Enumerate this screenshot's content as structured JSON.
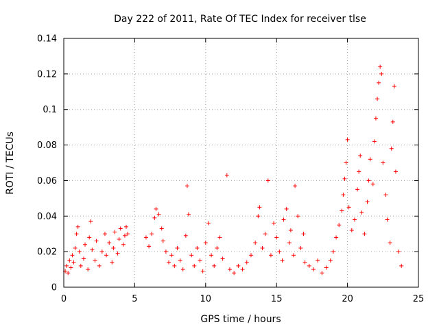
{
  "chart_data": {
    "type": "scatter",
    "title": "Day 222 of 2011, Rate Of TEC Index for receiver tlse",
    "xlabel": "GPS time / hours",
    "ylabel": "ROTI / TECUs",
    "xlim": [
      0,
      25
    ],
    "ylim": [
      0,
      0.14
    ],
    "xticks": [
      0,
      5,
      10,
      15,
      20,
      25
    ],
    "yticks": [
      0,
      0.02,
      0.04,
      0.06,
      0.08,
      0.1,
      0.12,
      0.14
    ],
    "xtick_labels": [
      "0",
      "5",
      "10",
      "15",
      "20",
      "25"
    ],
    "ytick_labels": [
      "0",
      "0.02",
      "0.04",
      "0.06",
      "0.08",
      "0.1",
      "0.12",
      "0.14"
    ],
    "grid": true,
    "marker": "+",
    "color": "#ff0000",
    "series": [
      {
        "points": [
          [
            0.1,
            0.009
          ],
          [
            0.2,
            0.012
          ],
          [
            0.3,
            0.008
          ],
          [
            0.4,
            0.015
          ],
          [
            0.5,
            0.011
          ],
          [
            0.6,
            0.018
          ],
          [
            0.7,
            0.014
          ],
          [
            0.8,
            0.022
          ],
          [
            0.9,
            0.03
          ],
          [
            1.0,
            0.034
          ],
          [
            1.1,
            0.02
          ],
          [
            1.2,
            0.012
          ],
          [
            1.4,
            0.016
          ],
          [
            1.5,
            0.024
          ],
          [
            1.7,
            0.01
          ],
          [
            1.8,
            0.028
          ],
          [
            1.9,
            0.037
          ],
          [
            2.0,
            0.021
          ],
          [
            2.2,
            0.015
          ],
          [
            2.3,
            0.026
          ],
          [
            2.5,
            0.012
          ],
          [
            2.7,
            0.02
          ],
          [
            2.9,
            0.03
          ],
          [
            3.0,
            0.018
          ],
          [
            3.2,
            0.025
          ],
          [
            3.4,
            0.014
          ],
          [
            3.5,
            0.022
          ],
          [
            3.6,
            0.031
          ],
          [
            3.8,
            0.019
          ],
          [
            3.9,
            0.027
          ],
          [
            4.0,
            0.033
          ],
          [
            4.2,
            0.024
          ],
          [
            4.3,
            0.029
          ],
          [
            4.4,
            0.034
          ],
          [
            4.5,
            0.03
          ],
          [
            5.8,
            0.028
          ],
          [
            6.0,
            0.023
          ],
          [
            6.2,
            0.03
          ],
          [
            6.4,
            0.039
          ],
          [
            6.5,
            0.044
          ],
          [
            6.7,
            0.041
          ],
          [
            6.9,
            0.033
          ],
          [
            7.0,
            0.026
          ],
          [
            7.2,
            0.02
          ],
          [
            7.4,
            0.014
          ],
          [
            7.6,
            0.018
          ],
          [
            7.8,
            0.012
          ],
          [
            8.0,
            0.022
          ],
          [
            8.2,
            0.015
          ],
          [
            8.4,
            0.01
          ],
          [
            8.6,
            0.029
          ],
          [
            8.7,
            0.057
          ],
          [
            8.8,
            0.041
          ],
          [
            9.0,
            0.018
          ],
          [
            9.2,
            0.012
          ],
          [
            9.4,
            0.022
          ],
          [
            9.6,
            0.015
          ],
          [
            9.8,
            0.009
          ],
          [
            10.0,
            0.025
          ],
          [
            10.2,
            0.036
          ],
          [
            10.4,
            0.018
          ],
          [
            10.6,
            0.012
          ],
          [
            10.8,
            0.022
          ],
          [
            11.0,
            0.028
          ],
          [
            11.2,
            0.016
          ],
          [
            11.5,
            0.063
          ],
          [
            11.7,
            0.01
          ],
          [
            12.0,
            0.008
          ],
          [
            12.3,
            0.012
          ],
          [
            12.6,
            0.01
          ],
          [
            12.9,
            0.014
          ],
          [
            13.2,
            0.018
          ],
          [
            13.5,
            0.025
          ],
          [
            13.7,
            0.04
          ],
          [
            13.8,
            0.045
          ],
          [
            14.0,
            0.022
          ],
          [
            14.2,
            0.03
          ],
          [
            14.4,
            0.06
          ],
          [
            14.6,
            0.018
          ],
          [
            14.8,
            0.036
          ],
          [
            15.0,
            0.028
          ],
          [
            15.2,
            0.02
          ],
          [
            15.4,
            0.015
          ],
          [
            15.5,
            0.038
          ],
          [
            15.7,
            0.044
          ],
          [
            15.9,
            0.025
          ],
          [
            16.0,
            0.032
          ],
          [
            16.2,
            0.018
          ],
          [
            16.3,
            0.057
          ],
          [
            16.5,
            0.04
          ],
          [
            16.7,
            0.022
          ],
          [
            16.9,
            0.03
          ],
          [
            17.0,
            0.014
          ],
          [
            17.3,
            0.012
          ],
          [
            17.6,
            0.01
          ],
          [
            17.9,
            0.015
          ],
          [
            18.2,
            0.008
          ],
          [
            18.5,
            0.011
          ],
          [
            18.8,
            0.015
          ],
          [
            19.0,
            0.02
          ],
          [
            19.2,
            0.028
          ],
          [
            19.4,
            0.035
          ],
          [
            19.6,
            0.043
          ],
          [
            19.7,
            0.052
          ],
          [
            19.8,
            0.061
          ],
          [
            19.9,
            0.07
          ],
          [
            20.0,
            0.083
          ],
          [
            20.1,
            0.045
          ],
          [
            20.3,
            0.032
          ],
          [
            20.5,
            0.038
          ],
          [
            20.7,
            0.055
          ],
          [
            20.8,
            0.065
          ],
          [
            20.9,
            0.074
          ],
          [
            21.0,
            0.042
          ],
          [
            21.2,
            0.03
          ],
          [
            21.4,
            0.048
          ],
          [
            21.5,
            0.06
          ],
          [
            21.6,
            0.072
          ],
          [
            21.8,
            0.058
          ],
          [
            21.9,
            0.082
          ],
          [
            22.0,
            0.095
          ],
          [
            22.1,
            0.106
          ],
          [
            22.2,
            0.115
          ],
          [
            22.3,
            0.124
          ],
          [
            22.4,
            0.12
          ],
          [
            22.5,
            0.07
          ],
          [
            22.7,
            0.052
          ],
          [
            22.8,
            0.038
          ],
          [
            23.0,
            0.025
          ],
          [
            23.1,
            0.078
          ],
          [
            23.2,
            0.093
          ],
          [
            23.3,
            0.113
          ],
          [
            23.4,
            0.065
          ],
          [
            23.6,
            0.02
          ],
          [
            23.8,
            0.012
          ]
        ]
      }
    ]
  }
}
